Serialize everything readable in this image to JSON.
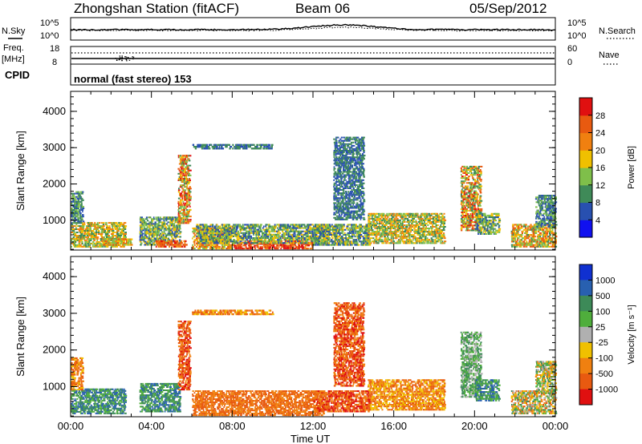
{
  "header": {
    "station": "Zhongshan Station (fitACF)",
    "beam": "Beam 06",
    "date": "05/Sep/2012"
  },
  "noise_panel": {
    "left_label": "N.Sky",
    "left_ticks": [
      "10^5",
      "10^0"
    ],
    "right_ticks": [
      "10^5",
      "10^0"
    ],
    "right_label": "N.Search",
    "right_legend_style": "dotted"
  },
  "freq_panel": {
    "left_label_1": "Freq.",
    "left_label_2": "[MHz]",
    "left_ticks": [
      "18",
      "8"
    ],
    "right_ticks": [
      "60",
      "0"
    ],
    "right_label": "Nave",
    "right_legend_style": "dotted"
  },
  "cpid": {
    "label": "CPID",
    "mode_text": "normal (fast stereo) 153"
  },
  "x_axis": {
    "label": "Time UT",
    "tick_labels": [
      "00:00",
      "04:00",
      "08:00",
      "12:00",
      "16:00",
      "20:00",
      "00:00"
    ],
    "range_hours": [
      0,
      24
    ]
  },
  "chart_data": [
    {
      "type": "heatmap",
      "name": "power",
      "ylabel": "Slant Range [km]",
      "y_tick_labels": [
        "1000",
        "2000",
        "3000",
        "4000"
      ],
      "ylim": [
        180,
        4550
      ],
      "xlim_hours": [
        0,
        24
      ],
      "colorbar_label": "Power [dB]",
      "colorbar_ticks": [
        "4",
        "8",
        "12",
        "16",
        "20",
        "24",
        "28"
      ],
      "colorbar_colors": [
        "#1010f0",
        "#2850b0",
        "#3f8a58",
        "#7fbf4a",
        "#f0c000",
        "#f08010",
        "#e85a10",
        "#e01010"
      ],
      "regions": [
        {
          "t": [
            0.0,
            2.7
          ],
          "r": [
            250,
            950
          ],
          "level": [
            2,
            5
          ]
        },
        {
          "t": [
            0.0,
            0.6
          ],
          "r": [
            900,
            1800
          ],
          "level": [
            1,
            3
          ]
        },
        {
          "t": [
            1.5,
            3.0
          ],
          "r": [
            300,
            500
          ],
          "level": [
            3,
            6
          ]
        },
        {
          "t": [
            3.4,
            5.4
          ],
          "r": [
            300,
            1100
          ],
          "level": [
            1,
            4
          ]
        },
        {
          "t": [
            4.2,
            5.7
          ],
          "r": [
            250,
            450
          ],
          "level": [
            5,
            7
          ]
        },
        {
          "t": [
            5.3,
            5.9
          ],
          "r": [
            900,
            2800
          ],
          "level": [
            2,
            7
          ]
        },
        {
          "t": [
            6.0,
            8.0
          ],
          "r": [
            200,
            800
          ],
          "level": [
            3,
            6
          ]
        },
        {
          "t": [
            8.0,
            12.0
          ],
          "r": [
            200,
            450
          ],
          "level": [
            5,
            8
          ]
        },
        {
          "t": [
            6.2,
            12.8
          ],
          "r": [
            350,
            900
          ],
          "level": [
            1,
            4
          ]
        },
        {
          "t": [
            12.0,
            14.8
          ],
          "r": [
            300,
            900
          ],
          "level": [
            1,
            4
          ]
        },
        {
          "t": [
            13.0,
            14.5
          ],
          "r": [
            1000,
            3300
          ],
          "level": [
            1,
            2
          ]
        },
        {
          "t": [
            14.7,
            18.5
          ],
          "r": [
            350,
            1200
          ],
          "level": [
            2,
            5
          ]
        },
        {
          "t": [
            19.3,
            20.3
          ],
          "r": [
            700,
            2500
          ],
          "level": [
            2,
            7
          ]
        },
        {
          "t": [
            20.0,
            21.2
          ],
          "r": [
            600,
            1200
          ],
          "level": [
            1,
            4
          ]
        },
        {
          "t": [
            21.8,
            24.0
          ],
          "r": [
            250,
            900
          ],
          "level": [
            2,
            6
          ]
        },
        {
          "t": [
            23.0,
            24.0
          ],
          "r": [
            800,
            1700
          ],
          "level": [
            1,
            3
          ]
        },
        {
          "t": [
            6.0,
            10.0
          ],
          "r": [
            2950,
            3100
          ],
          "level": [
            1,
            2
          ]
        }
      ]
    },
    {
      "type": "heatmap",
      "name": "velocity",
      "ylabel": "Slant Range [km]",
      "y_tick_labels": [
        "1000",
        "2000",
        "3000",
        "4000"
      ],
      "ylim": [
        180,
        4550
      ],
      "xlim_hours": [
        0,
        24
      ],
      "colorbar_label": "Velocity [m s⁻¹]",
      "colorbar_ticks": [
        "1000",
        "500",
        "100",
        "25",
        "-25",
        "-100",
        "-500",
        "-1000"
      ],
      "colorbar_colors": [
        "#1030d0",
        "#2860b0",
        "#3d8a58",
        "#4fae3c",
        "#b0b0b0",
        "#f0c000",
        "#f08010",
        "#e85a10",
        "#e01010"
      ],
      "regions": [
        {
          "t": [
            0.0,
            2.7
          ],
          "r": [
            250,
            950
          ],
          "level": [
            1,
            3
          ]
        },
        {
          "t": [
            0.0,
            0.6
          ],
          "r": [
            900,
            1800
          ],
          "level": [
            5,
            7
          ]
        },
        {
          "t": [
            3.4,
            5.4
          ],
          "r": [
            300,
            1100
          ],
          "level": [
            1,
            3
          ]
        },
        {
          "t": [
            5.3,
            5.9
          ],
          "r": [
            900,
            2800
          ],
          "level": [
            6,
            8
          ]
        },
        {
          "t": [
            6.0,
            12.5
          ],
          "r": [
            200,
            900
          ],
          "level": [
            6,
            7
          ]
        },
        {
          "t": [
            12.0,
            14.8
          ],
          "r": [
            300,
            900
          ],
          "level": [
            6,
            8
          ]
        },
        {
          "t": [
            13.0,
            14.5
          ],
          "r": [
            1000,
            3300
          ],
          "level": [
            6,
            8
          ]
        },
        {
          "t": [
            14.7,
            18.5
          ],
          "r": [
            350,
            1200
          ],
          "level": [
            5,
            7
          ]
        },
        {
          "t": [
            19.3,
            20.3
          ],
          "r": [
            700,
            2500
          ],
          "level": [
            2,
            4
          ]
        },
        {
          "t": [
            20.0,
            21.2
          ],
          "r": [
            600,
            1200
          ],
          "level": [
            1,
            3
          ]
        },
        {
          "t": [
            21.8,
            24.0
          ],
          "r": [
            250,
            900
          ],
          "level": [
            2,
            7
          ]
        },
        {
          "t": [
            23.0,
            24.0
          ],
          "r": [
            800,
            1700
          ],
          "level": [
            2,
            6
          ]
        },
        {
          "t": [
            6.0,
            10.0
          ],
          "r": [
            2950,
            3100
          ],
          "level": [
            5,
            7
          ]
        }
      ]
    }
  ]
}
